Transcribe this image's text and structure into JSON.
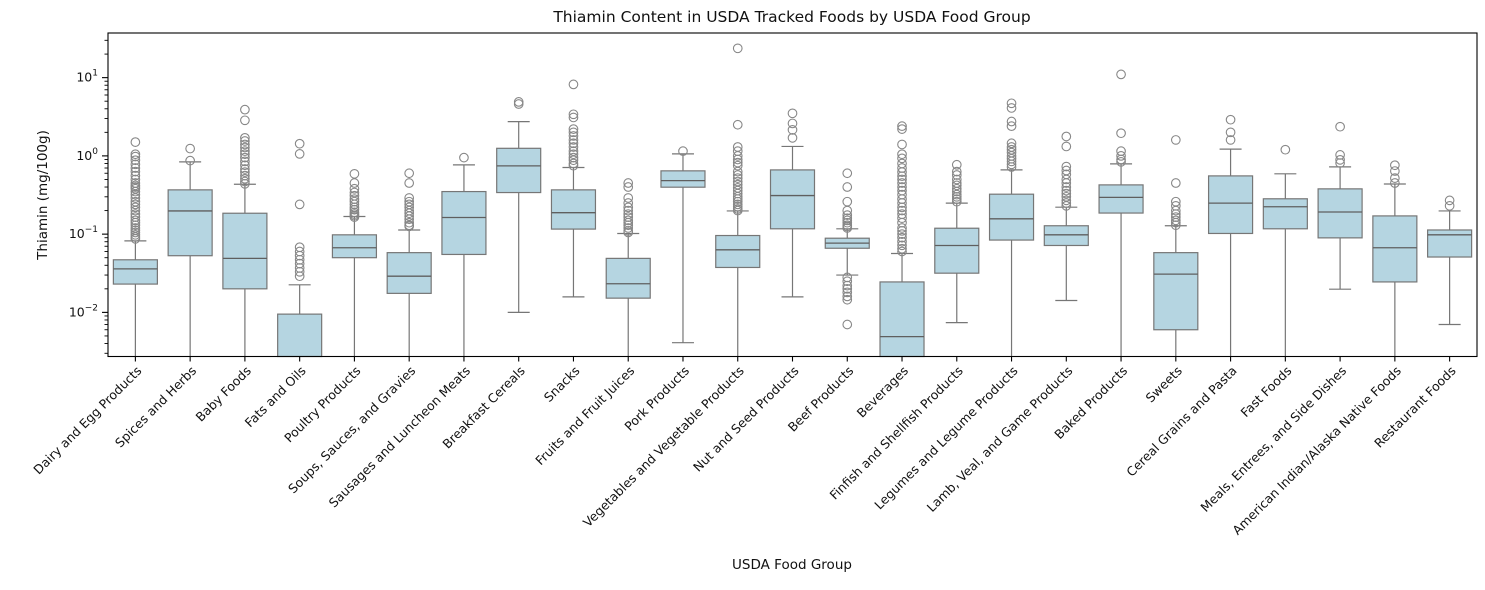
{
  "figure": {
    "title": "Thiamin Content in USDA Tracked Foods by USDA Food Group",
    "x_axis_label": "USDA Food Group",
    "y_axis_label": "Thiamin (mg/100g)"
  },
  "colors": {
    "background": "#ffffff",
    "box_fill": "#b5d5e1",
    "box_edge": "#767676",
    "whisker": "#767676",
    "median": "#5f5f5f",
    "flier": "#878787",
    "axis": "#000000"
  },
  "chart_data": {
    "type": "box",
    "title": "Thiamin Content in USDA Tracked Foods by USDA Food Group",
    "xlabel": "USDA Food Group",
    "ylabel": "Thiamin (mg/100g)",
    "y_scale": "log",
    "ylim": [
      0.00273,
      37.2
    ],
    "grid": false,
    "y_ticks": [
      {
        "value": 10,
        "exp": "1"
      },
      {
        "value": 1,
        "exp": "0"
      },
      {
        "value": 0.1,
        "exp": "−1"
      },
      {
        "value": 0.01,
        "exp": "−2"
      }
    ],
    "groups": [
      {
        "label": "Dairy and Egg Products",
        "whislo": null,
        "q1": 0.023,
        "med": 0.036,
        "q3": 0.047,
        "whishi": 0.082,
        "fliers": [
          1.5,
          1.05,
          0.98,
          0.88,
          0.78,
          0.7,
          0.63,
          0.56,
          0.5,
          0.45,
          0.42,
          0.4,
          0.38,
          0.35,
          0.32,
          0.29,
          0.26,
          0.24,
          0.22,
          0.2,
          0.18,
          0.165,
          0.15,
          0.14,
          0.13,
          0.12,
          0.112,
          0.105,
          0.098,
          0.092,
          0.087
        ]
      },
      {
        "label": "Spices and Herbs",
        "whislo": null,
        "q1": 0.053,
        "med": 0.198,
        "q3": 0.368,
        "whishi": 0.838,
        "fliers": [
          1.24,
          0.87
        ]
      },
      {
        "label": "Baby Foods",
        "whislo": null,
        "q1": 0.02,
        "med": 0.049,
        "q3": 0.185,
        "whishi": 0.434,
        "fliers": [
          3.9,
          2.85,
          1.7,
          1.55,
          1.4,
          1.28,
          1.15,
          1.05,
          0.95,
          0.85,
          0.76,
          0.68,
          0.62,
          0.56,
          0.51,
          0.47,
          0.44
        ]
      },
      {
        "label": "Fats and Oils",
        "whislo": null,
        "q1": null,
        "med": null,
        "q3": 0.0095,
        "whishi": 0.0225,
        "fliers": [
          1.43,
          1.06,
          0.24,
          0.068,
          0.06,
          0.053,
          0.047,
          0.042,
          0.037,
          0.033,
          0.029
        ]
      },
      {
        "label": "Poultry Products",
        "whislo": null,
        "q1": 0.05,
        "med": 0.067,
        "q3": 0.098,
        "whishi": 0.168,
        "fliers": [
          0.59,
          0.45,
          0.38,
          0.34,
          0.31,
          0.28,
          0.26,
          0.24,
          0.22,
          0.205,
          0.19,
          0.18,
          0.172,
          0.165
        ]
      },
      {
        "label": "Soups, Sauces, and Gravies",
        "whislo": null,
        "q1": 0.0175,
        "med": 0.029,
        "q3": 0.058,
        "whishi": 0.113,
        "fliers": [
          0.6,
          0.45,
          0.29,
          0.26,
          0.24,
          0.22,
          0.2,
          0.185,
          0.17,
          0.155,
          0.14,
          0.13,
          0.126
        ]
      },
      {
        "label": "Sausages and Luncheon Meats",
        "whislo": null,
        "q1": 0.055,
        "med": 0.163,
        "q3": 0.35,
        "whishi": 0.767,
        "fliers": [
          0.95
        ]
      },
      {
        "label": "Breakfast Cereals",
        "whislo": 0.01,
        "q1": 0.34,
        "med": 0.746,
        "q3": 1.25,
        "whishi": 2.74,
        "fliers": [
          4.9,
          4.6
        ]
      },
      {
        "label": "Snacks",
        "whislo": 0.0158,
        "q1": 0.116,
        "med": 0.188,
        "q3": 0.368,
        "whishi": 0.71,
        "fliers": [
          8.2,
          3.4,
          3.1,
          2.2,
          2.0,
          1.8,
          1.6,
          1.45,
          1.3,
          1.15,
          1.05,
          0.95,
          0.88,
          0.8,
          0.75
        ]
      },
      {
        "label": "Fruits and Fruit Juices",
        "whislo": null,
        "q1": 0.0152,
        "med": 0.0232,
        "q3": 0.049,
        "whishi": 0.102,
        "fliers": [
          0.45,
          0.4,
          0.29,
          0.25,
          0.22,
          0.2,
          0.18,
          0.165,
          0.15,
          0.14,
          0.13,
          0.12,
          0.11,
          0.105
        ]
      },
      {
        "label": "Pork Products",
        "whislo": 0.0041,
        "q1": 0.398,
        "med": 0.483,
        "q3": 0.644,
        "whishi": 1.06,
        "fliers": [
          1.15
        ]
      },
      {
        "label": "Vegetables and Vegetable Products",
        "whislo": null,
        "q1": 0.0375,
        "med": 0.063,
        "q3": 0.096,
        "whishi": 0.198,
        "fliers": [
          23.7,
          2.5,
          1.3,
          1.15,
          1.0,
          0.9,
          0.82,
          0.75,
          0.63,
          0.57,
          0.52,
          0.47,
          0.43,
          0.39,
          0.36,
          0.33,
          0.3,
          0.28,
          0.26,
          0.24,
          0.225,
          0.21,
          0.2
        ]
      },
      {
        "label": "Nut and Seed Products",
        "whislo": 0.0158,
        "q1": 0.117,
        "med": 0.311,
        "q3": 0.662,
        "whishi": 1.32,
        "fliers": [
          3.5,
          2.6,
          2.15,
          1.7
        ]
      },
      {
        "label": "Beef Products",
        "whislo": 0.03,
        "q1": 0.066,
        "med": 0.0767,
        "q3": 0.0887,
        "whishi": 0.117,
        "fliers": [
          0.6,
          0.4,
          0.26,
          0.2,
          0.175,
          0.16,
          0.15,
          0.14,
          0.13,
          0.125,
          0.12,
          0.028,
          0.025,
          0.022,
          0.02,
          0.018,
          0.016,
          0.0145,
          0.007
        ]
      },
      {
        "label": "Beverages",
        "whislo": null,
        "q1": null,
        "med": 0.0049,
        "q3": 0.0245,
        "whishi": 0.0565,
        "fliers": [
          2.4,
          2.2,
          1.4,
          1.05,
          0.93,
          0.8,
          0.7,
          0.62,
          0.55,
          0.5,
          0.45,
          0.4,
          0.36,
          0.32,
          0.28,
          0.25,
          0.22,
          0.2,
          0.18,
          0.16,
          0.14,
          0.12,
          0.11,
          0.1,
          0.09,
          0.08,
          0.072,
          0.065,
          0.06
        ]
      },
      {
        "label": "Finfish and Shellfish Products",
        "whislo": 0.0074,
        "q1": 0.0317,
        "med": 0.0716,
        "q3": 0.119,
        "whishi": 0.249,
        "fliers": [
          0.77,
          0.63,
          0.57,
          0.5,
          0.45,
          0.42,
          0.38,
          0.35,
          0.32,
          0.3,
          0.28,
          0.26
        ]
      },
      {
        "label": "Legumes and Legume Products",
        "whislo": null,
        "q1": 0.084,
        "med": 0.157,
        "q3": 0.324,
        "whishi": 0.663,
        "fliers": [
          4.7,
          4.1,
          2.75,
          2.4,
          1.45,
          1.3,
          1.2,
          1.1,
          1.0,
          0.92,
          0.85,
          0.78,
          0.72
        ]
      },
      {
        "label": "Lamb, Veal, and Game Products",
        "whislo": 0.0142,
        "q1": 0.0716,
        "med": 0.098,
        "q3": 0.128,
        "whishi": 0.221,
        "fliers": [
          1.77,
          1.32,
          0.73,
          0.65,
          0.58,
          0.5,
          0.45,
          0.4,
          0.36,
          0.33,
          0.3,
          0.27,
          0.25,
          0.23
        ]
      },
      {
        "label": "Baked Products",
        "whislo": null,
        "q1": 0.186,
        "med": 0.295,
        "q3": 0.426,
        "whishi": 0.79,
        "fliers": [
          11.0,
          1.95,
          1.15,
          1.0,
          0.9,
          0.84
        ]
      },
      {
        "label": "Sweets",
        "whislo": null,
        "q1": 0.006,
        "med": 0.0308,
        "q3": 0.058,
        "whishi": 0.128,
        "fliers": [
          1.6,
          0.45,
          0.26,
          0.23,
          0.2,
          0.18,
          0.165,
          0.15,
          0.14,
          0.13
        ]
      },
      {
        "label": "Cereal Grains and Pasta",
        "whislo": null,
        "q1": 0.102,
        "med": 0.249,
        "q3": 0.555,
        "whishi": 1.22,
        "fliers": [
          2.9,
          2.0,
          1.6
        ]
      },
      {
        "label": "Fast Foods",
        "whislo": null,
        "q1": 0.117,
        "med": 0.224,
        "q3": 0.283,
        "whishi": 0.59,
        "fliers": [
          1.2
        ]
      },
      {
        "label": "Meals, Entrees, and Side Dishes",
        "whislo": 0.0198,
        "q1": 0.0896,
        "med": 0.192,
        "q3": 0.379,
        "whishi": 0.724,
        "fliers": [
          2.36,
          1.03,
          0.89,
          0.81
        ]
      },
      {
        "label": "American Indian/Alaska Native Foods",
        "whislo": null,
        "q1": 0.0245,
        "med": 0.067,
        "q3": 0.171,
        "whishi": 0.437,
        "fliers": [
          0.76,
          0.64,
          0.52,
          0.45
        ]
      },
      {
        "label": "Restaurant Foods",
        "whislo": 0.007,
        "q1": 0.051,
        "med": 0.098,
        "q3": 0.113,
        "whishi": 0.198,
        "fliers": [
          0.27,
          0.23
        ]
      }
    ]
  }
}
